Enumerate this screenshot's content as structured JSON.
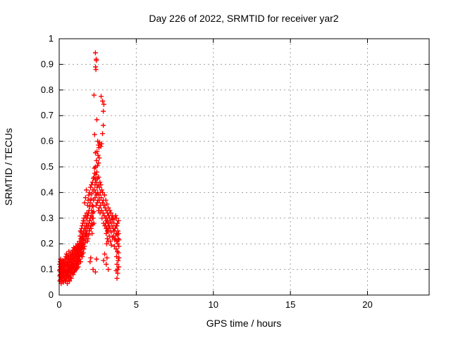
{
  "window": {
    "background": "#ffffff"
  },
  "chart_data": {
    "type": "scatter",
    "title": "Day 226 of 2022, SRMTID for receiver yar2",
    "xlabel": "GPS time / hours",
    "ylabel": "SRMTID / TECUs",
    "xlim": [
      0,
      24
    ],
    "ylim": [
      0,
      1
    ],
    "xticks": [
      0,
      5,
      10,
      15,
      20
    ],
    "xtick_labels": [
      "0",
      "5",
      "10",
      "15",
      "20"
    ],
    "yticks": [
      0,
      0.1,
      0.2,
      0.3,
      0.4,
      0.5,
      0.6,
      0.7,
      0.8,
      0.9,
      1
    ],
    "ytick_labels": [
      "0",
      "0.1",
      "0.2",
      "0.3",
      "0.4",
      "0.5",
      "0.6",
      "0.7",
      "0.8",
      "0.9",
      "1"
    ],
    "grid": true,
    "grid_color": "#a0a0a0",
    "grid_style": "dashed",
    "legend": false,
    "marker": "plus",
    "marker_color": "#ff0000",
    "frame_color": "#000000",
    "points": [
      [
        0.02,
        0.095
      ],
      [
        0.03,
        0.075
      ],
      [
        0.03,
        0.12
      ],
      [
        0.04,
        0.055
      ],
      [
        0.05,
        0.1
      ],
      [
        0.06,
        0.13
      ],
      [
        0.07,
        0.08
      ],
      [
        0.08,
        0.11
      ],
      [
        0.08,
        0.06
      ],
      [
        0.09,
        0.14
      ],
      [
        0.1,
        0.09
      ],
      [
        0.11,
        0.12
      ],
      [
        0.12,
        0.07
      ],
      [
        0.13,
        0.1
      ],
      [
        0.13,
        0.045
      ],
      [
        0.14,
        0.13
      ],
      [
        0.15,
        0.085
      ],
      [
        0.16,
        0.11
      ],
      [
        0.17,
        0.065
      ],
      [
        0.18,
        0.095
      ],
      [
        0.19,
        0.125
      ],
      [
        0.2,
        0.08
      ],
      [
        0.21,
        0.105
      ],
      [
        0.22,
        0.06
      ],
      [
        0.23,
        0.135
      ],
      [
        0.24,
        0.09
      ],
      [
        0.25,
        0.115
      ],
      [
        0.26,
        0.075
      ],
      [
        0.27,
        0.1
      ],
      [
        0.28,
        0.05
      ],
      [
        0.29,
        0.13
      ],
      [
        0.3,
        0.085
      ],
      [
        0.31,
        0.11
      ],
      [
        0.32,
        0.07
      ],
      [
        0.33,
        0.095
      ],
      [
        0.34,
        0.12
      ],
      [
        0.35,
        0.065
      ],
      [
        0.36,
        0.1
      ],
      [
        0.37,
        0.14
      ],
      [
        0.38,
        0.08
      ],
      [
        0.39,
        0.115
      ],
      [
        0.4,
        0.055
      ],
      [
        0.41,
        0.13
      ],
      [
        0.42,
        0.09
      ],
      [
        0.43,
        0.15
      ],
      [
        0.44,
        0.07
      ],
      [
        0.45,
        0.12
      ],
      [
        0.46,
        0.095
      ],
      [
        0.47,
        0.16
      ],
      [
        0.48,
        0.065
      ],
      [
        0.49,
        0.11
      ],
      [
        0.5,
        0.14
      ],
      [
        0.51,
        0.08
      ],
      [
        0.52,
        0.125
      ],
      [
        0.53,
        0.045
      ],
      [
        0.54,
        0.1
      ],
      [
        0.55,
        0.155
      ],
      [
        0.56,
        0.075
      ],
      [
        0.57,
        0.13
      ],
      [
        0.58,
        0.09
      ],
      [
        0.59,
        0.115
      ],
      [
        0.6,
        0.06
      ],
      [
        0.61,
        0.145
      ],
      [
        0.62,
        0.1
      ],
      [
        0.63,
        0.17
      ],
      [
        0.64,
        0.08
      ],
      [
        0.65,
        0.12
      ],
      [
        0.66,
        0.095
      ],
      [
        0.67,
        0.055
      ],
      [
        0.68,
        0.135
      ],
      [
        0.69,
        0.105
      ],
      [
        0.7,
        0.15
      ],
      [
        0.71,
        0.07
      ],
      [
        0.72,
        0.11
      ],
      [
        0.73,
        0.16
      ],
      [
        0.74,
        0.085
      ],
      [
        0.75,
        0.125
      ],
      [
        0.76,
        0.1
      ],
      [
        0.77,
        0.14
      ],
      [
        0.78,
        0.065
      ],
      [
        0.79,
        0.115
      ],
      [
        0.8,
        0.09
      ],
      [
        0.42,
        0.13
      ],
      [
        0.48,
        0.085
      ],
      [
        0.52,
        0.105
      ],
      [
        0.58,
        0.14
      ],
      [
        0.62,
        0.075
      ],
      [
        0.66,
        0.125
      ],
      [
        0.72,
        0.095
      ],
      [
        0.78,
        0.15
      ],
      [
        0.45,
        0.06
      ],
      [
        0.55,
        0.09
      ],
      [
        0.65,
        0.11
      ],
      [
        0.75,
        0.13
      ],
      [
        0.81,
        0.13
      ],
      [
        0.82,
        0.1
      ],
      [
        0.83,
        0.165
      ],
      [
        0.84,
        0.085
      ],
      [
        0.85,
        0.12
      ],
      [
        0.86,
        0.145
      ],
      [
        0.87,
        0.095
      ],
      [
        0.88,
        0.175
      ],
      [
        0.89,
        0.11
      ],
      [
        0.9,
        0.14
      ],
      [
        0.91,
        0.08
      ],
      [
        0.92,
        0.155
      ],
      [
        0.93,
        0.12
      ],
      [
        0.94,
        0.185
      ],
      [
        0.95,
        0.1
      ],
      [
        0.96,
        0.135
      ],
      [
        0.97,
        0.165
      ],
      [
        0.98,
        0.09
      ],
      [
        0.99,
        0.15
      ],
      [
        1.0,
        0.115
      ],
      [
        1.01,
        0.18
      ],
      [
        1.02,
        0.095
      ],
      [
        1.03,
        0.14
      ],
      [
        1.04,
        0.17
      ],
      [
        1.05,
        0.105
      ],
      [
        1.06,
        0.155
      ],
      [
        1.07,
        0.125
      ],
      [
        1.08,
        0.19
      ],
      [
        1.09,
        0.1
      ],
      [
        1.1,
        0.16
      ],
      [
        1.11,
        0.13
      ],
      [
        1.12,
        0.175
      ],
      [
        1.13,
        0.115
      ],
      [
        1.14,
        0.145
      ],
      [
        1.15,
        0.185
      ],
      [
        1.16,
        0.105
      ],
      [
        1.17,
        0.165
      ],
      [
        1.18,
        0.135
      ],
      [
        1.19,
        0.2
      ],
      [
        1.2,
        0.12
      ],
      [
        1.21,
        0.155
      ],
      [
        1.22,
        0.18
      ],
      [
        1.23,
        0.11
      ],
      [
        1.24,
        0.17
      ],
      [
        1.25,
        0.14
      ],
      [
        1.26,
        0.195
      ],
      [
        1.27,
        0.125
      ],
      [
        1.28,
        0.16
      ],
      [
        1.29,
        0.185
      ],
      [
        1.3,
        0.15
      ],
      [
        0.85,
        0.105
      ],
      [
        0.92,
        0.13
      ],
      [
        0.98,
        0.115
      ],
      [
        1.05,
        0.17
      ],
      [
        1.12,
        0.14
      ],
      [
        1.18,
        0.12
      ],
      [
        1.25,
        0.16
      ],
      [
        0.88,
        0.16
      ],
      [
        1.31,
        0.175
      ],
      [
        1.32,
        0.21
      ],
      [
        1.33,
        0.14
      ],
      [
        1.34,
        0.19
      ],
      [
        1.35,
        0.23
      ],
      [
        1.36,
        0.16
      ],
      [
        1.37,
        0.2
      ],
      [
        1.38,
        0.25
      ],
      [
        1.39,
        0.13
      ],
      [
        1.4,
        0.22
      ],
      [
        1.41,
        0.18
      ],
      [
        1.42,
        0.245
      ],
      [
        1.43,
        0.155
      ],
      [
        1.44,
        0.21
      ],
      [
        1.45,
        0.26
      ],
      [
        1.46,
        0.17
      ],
      [
        1.47,
        0.23
      ],
      [
        1.48,
        0.195
      ],
      [
        1.49,
        0.27
      ],
      [
        1.5,
        0.15
      ],
      [
        1.51,
        0.225
      ],
      [
        1.52,
        0.185
      ],
      [
        1.53,
        0.28
      ],
      [
        1.54,
        0.2
      ],
      [
        1.55,
        0.24
      ],
      [
        1.56,
        0.165
      ],
      [
        1.57,
        0.29
      ],
      [
        1.58,
        0.215
      ],
      [
        1.59,
        0.25
      ],
      [
        1.6,
        0.18
      ],
      [
        1.61,
        0.3
      ],
      [
        1.62,
        0.22
      ],
      [
        1.63,
        0.26
      ],
      [
        1.64,
        0.19
      ],
      [
        1.65,
        0.36
      ],
      [
        1.66,
        0.235
      ],
      [
        1.67,
        0.28
      ],
      [
        1.68,
        0.205
      ],
      [
        1.69,
        0.31
      ],
      [
        1.7,
        0.24
      ],
      [
        1.71,
        0.38
      ],
      [
        1.72,
        0.26
      ],
      [
        1.73,
        0.22
      ],
      [
        1.74,
        0.3
      ],
      [
        1.75,
        0.25
      ],
      [
        1.76,
        0.41
      ],
      [
        1.77,
        0.27
      ],
      [
        1.78,
        0.23
      ],
      [
        1.79,
        0.32
      ],
      [
        1.8,
        0.28
      ],
      [
        1.38,
        0.17
      ],
      [
        1.45,
        0.19
      ],
      [
        1.52,
        0.22
      ],
      [
        1.58,
        0.205
      ],
      [
        1.48,
        0.16
      ],
      [
        1.81,
        0.24
      ],
      [
        1.82,
        0.3
      ],
      [
        1.83,
        0.21
      ],
      [
        1.84,
        0.35
      ],
      [
        1.85,
        0.26
      ],
      [
        1.86,
        0.31
      ],
      [
        1.87,
        0.22
      ],
      [
        1.88,
        0.37
      ],
      [
        1.89,
        0.27
      ],
      [
        1.9,
        0.32
      ],
      [
        1.91,
        0.235
      ],
      [
        1.92,
        0.39
      ],
      [
        1.93,
        0.28
      ],
      [
        1.94,
        0.33
      ],
      [
        1.95,
        0.25
      ],
      [
        1.96,
        0.4
      ],
      [
        1.97,
        0.29
      ],
      [
        1.98,
        0.345
      ],
      [
        1.99,
        0.26
      ],
      [
        2.0,
        0.13
      ],
      [
        2.01,
        0.36
      ],
      [
        2.02,
        0.3
      ],
      [
        2.03,
        0.42
      ],
      [
        2.04,
        0.27
      ],
      [
        2.05,
        0.145
      ],
      [
        2.06,
        0.375
      ],
      [
        2.07,
        0.31
      ],
      [
        2.08,
        0.26
      ],
      [
        2.09,
        0.43
      ],
      [
        2.1,
        0.33
      ],
      [
        2.11,
        0.28
      ],
      [
        2.12,
        0.395
      ],
      [
        2.13,
        0.24
      ],
      [
        2.14,
        0.35
      ],
      [
        2.15,
        0.3
      ],
      [
        2.16,
        0.44
      ],
      [
        2.17,
        0.32
      ],
      [
        2.18,
        0.275
      ],
      [
        2.19,
        0.41
      ],
      [
        2.2,
        0.345
      ],
      [
        2.21,
        0.3
      ],
      [
        2.22,
        0.455
      ],
      [
        2.23,
        0.37
      ],
      [
        2.24,
        0.325
      ],
      [
        2.25,
        0.28
      ],
      [
        2.35,
        0.945
      ],
      [
        2.4,
        0.92
      ],
      [
        2.41,
        0.915
      ],
      [
        2.36,
        0.89
      ],
      [
        2.38,
        0.88
      ],
      [
        2.26,
        0.78
      ],
      [
        2.72,
        0.775
      ],
      [
        2.81,
        0.757
      ],
      [
        2.9,
        0.744
      ],
      [
        2.86,
        0.717
      ],
      [
        2.44,
        0.684
      ],
      [
        2.86,
        0.662
      ],
      [
        2.3,
        0.626
      ],
      [
        2.81,
        0.63
      ],
      [
        2.5,
        0.6
      ],
      [
        2.55,
        0.585
      ],
      [
        2.62,
        0.595
      ],
      [
        2.7,
        0.58
      ],
      [
        2.58,
        0.575
      ],
      [
        2.75,
        0.59
      ],
      [
        2.35,
        0.555
      ],
      [
        2.45,
        0.56
      ],
      [
        2.52,
        0.545
      ],
      [
        2.6,
        0.535
      ],
      [
        2.42,
        0.525
      ],
      [
        2.55,
        0.515
      ],
      [
        2.35,
        0.5
      ],
      [
        2.48,
        0.505
      ],
      [
        2.28,
        0.495
      ],
      [
        2.26,
        0.46
      ],
      [
        2.28,
        0.41
      ],
      [
        2.3,
        0.475
      ],
      [
        2.32,
        0.43
      ],
      [
        2.33,
        0.38
      ],
      [
        2.35,
        0.45
      ],
      [
        2.37,
        0.4
      ],
      [
        2.38,
        0.47
      ],
      [
        2.4,
        0.35
      ],
      [
        2.41,
        0.44
      ],
      [
        2.43,
        0.39
      ],
      [
        2.44,
        0.48
      ],
      [
        2.46,
        0.42
      ],
      [
        2.47,
        0.36
      ],
      [
        2.49,
        0.455
      ],
      [
        2.5,
        0.4
      ],
      [
        2.52,
        0.37
      ],
      [
        2.53,
        0.43
      ],
      [
        2.55,
        0.33
      ],
      [
        2.56,
        0.46
      ],
      [
        2.58,
        0.39
      ],
      [
        2.59,
        0.34
      ],
      [
        2.61,
        0.42
      ],
      [
        2.62,
        0.37
      ],
      [
        2.64,
        0.44
      ],
      [
        2.65,
        0.32
      ],
      [
        2.67,
        0.4
      ],
      [
        2.68,
        0.35
      ],
      [
        2.7,
        0.43
      ],
      [
        2.72,
        0.38
      ],
      [
        2.74,
        0.33
      ],
      [
        2.76,
        0.41
      ],
      [
        2.78,
        0.3
      ],
      [
        2.8,
        0.36
      ],
      [
        2.82,
        0.4
      ],
      [
        2.84,
        0.32
      ],
      [
        2.86,
        0.37
      ],
      [
        2.88,
        0.28
      ],
      [
        2.9,
        0.35
      ],
      [
        2.92,
        0.31
      ],
      [
        2.94,
        0.39
      ],
      [
        2.96,
        0.27
      ],
      [
        2.98,
        0.34
      ],
      [
        3.0,
        0.3
      ],
      [
        3.02,
        0.37
      ],
      [
        3.04,
        0.26
      ],
      [
        3.06,
        0.33
      ],
      [
        3.08,
        0.29
      ],
      [
        3.1,
        0.355
      ],
      [
        3.12,
        0.25
      ],
      [
        3.14,
        0.32
      ],
      [
        3.16,
        0.28
      ],
      [
        3.18,
        0.34
      ],
      [
        3.2,
        0.26
      ],
      [
        3.22,
        0.31
      ],
      [
        3.24,
        0.27
      ],
      [
        2.95,
        0.16
      ],
      [
        3.05,
        0.12
      ],
      [
        3.1,
        0.145
      ],
      [
        3.18,
        0.1
      ],
      [
        2.88,
        0.135
      ],
      [
        2.42,
        0.14
      ],
      [
        2.2,
        0.1
      ],
      [
        2.35,
        0.09
      ],
      [
        3.02,
        0.28
      ],
      [
        3.05,
        0.24
      ],
      [
        3.08,
        0.3
      ],
      [
        3.1,
        0.26
      ],
      [
        3.12,
        0.22
      ],
      [
        3.15,
        0.29
      ],
      [
        3.17,
        0.25
      ],
      [
        3.2,
        0.31
      ],
      [
        3.22,
        0.27
      ],
      [
        3.25,
        0.23
      ],
      [
        3.27,
        0.3
      ],
      [
        3.3,
        0.26
      ],
      [
        3.32,
        0.21
      ],
      [
        3.35,
        0.285
      ],
      [
        3.37,
        0.245
      ],
      [
        3.4,
        0.3
      ],
      [
        3.42,
        0.27
      ],
      [
        3.45,
        0.225
      ],
      [
        3.47,
        0.295
      ],
      [
        3.5,
        0.26
      ],
      [
        3.52,
        0.23
      ],
      [
        3.55,
        0.28
      ],
      [
        3.57,
        0.25
      ],
      [
        3.6,
        0.215
      ],
      [
        3.35,
        0.32
      ],
      [
        3.45,
        0.31
      ],
      [
        3.28,
        0.33
      ],
      [
        3.52,
        0.3
      ],
      [
        3.18,
        0.21
      ],
      [
        3.08,
        0.2
      ],
      [
        3.38,
        0.195
      ],
      [
        3.58,
        0.19
      ],
      [
        3.62,
        0.3
      ],
      [
        3.63,
        0.26
      ],
      [
        3.65,
        0.22
      ],
      [
        3.66,
        0.31
      ],
      [
        3.68,
        0.27
      ],
      [
        3.69,
        0.18
      ],
      [
        3.7,
        0.24
      ],
      [
        3.71,
        0.3
      ],
      [
        3.72,
        0.15
      ],
      [
        3.73,
        0.21
      ],
      [
        3.74,
        0.27
      ],
      [
        3.75,
        0.12
      ],
      [
        3.76,
        0.235
      ],
      [
        3.77,
        0.17
      ],
      [
        3.78,
        0.28
      ],
      [
        3.79,
        0.1
      ],
      [
        3.8,
        0.2
      ],
      [
        3.81,
        0.25
      ],
      [
        3.82,
        0.135
      ],
      [
        3.83,
        0.22
      ],
      [
        3.84,
        0.165
      ],
      [
        3.85,
        0.29
      ],
      [
        3.86,
        0.11
      ],
      [
        3.87,
        0.19
      ],
      [
        3.88,
        0.145
      ],
      [
        3.75,
        0.065
      ],
      [
        3.8,
        0.085
      ],
      [
        3.7,
        0.095
      ],
      [
        3.85,
        0.24
      ],
      [
        3.88,
        0.215
      ]
    ]
  }
}
